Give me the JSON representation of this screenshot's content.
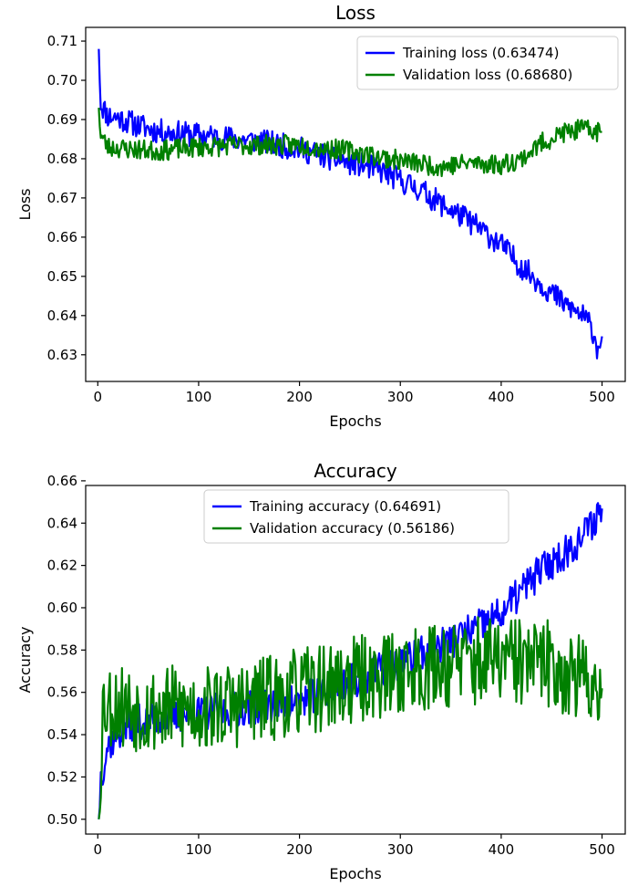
{
  "chart_data": [
    {
      "type": "line",
      "title": "Loss",
      "xlabel": "Epochs",
      "ylabel": "Loss",
      "xlim": [
        -12,
        523
      ],
      "ylim": [
        0.6232,
        0.7135
      ],
      "xticks": [
        0,
        100,
        200,
        300,
        400,
        500
      ],
      "yticks": [
        0.63,
        0.64,
        0.65,
        0.66,
        0.67,
        0.68,
        0.69,
        0.7,
        0.71
      ],
      "ytick_labels": [
        "0.63",
        "0.64",
        "0.65",
        "0.66",
        "0.67",
        "0.68",
        "0.69",
        "0.70",
        "0.71"
      ],
      "legend_position": "upper right",
      "series": [
        {
          "name": "Training loss (0.63474)",
          "color": "#0000ff",
          "noise": 0.0032,
          "seed": 11,
          "x": [
            1,
            3,
            10,
            20,
            40,
            60,
            80,
            100,
            120,
            140,
            160,
            180,
            200,
            220,
            240,
            260,
            280,
            300,
            320,
            340,
            360,
            380,
            400,
            420,
            440,
            460,
            480,
            490,
            495,
            500
          ],
          "y": [
            0.708,
            0.694,
            0.691,
            0.6905,
            0.6885,
            0.687,
            0.6865,
            0.686,
            0.6855,
            0.685,
            0.6845,
            0.6835,
            0.6825,
            0.681,
            0.6795,
            0.6785,
            0.677,
            0.6745,
            0.672,
            0.6685,
            0.6655,
            0.662,
            0.658,
            0.6525,
            0.648,
            0.6435,
            0.64,
            0.637,
            0.632,
            0.6347
          ]
        },
        {
          "name": "Validation loss (0.68680)",
          "color": "#008000",
          "noise": 0.0026,
          "seed": 23,
          "x": [
            1,
            3,
            10,
            30,
            60,
            100,
            150,
            200,
            250,
            300,
            340,
            370,
            400,
            420,
            440,
            460,
            480,
            500
          ],
          "y": [
            0.693,
            0.686,
            0.683,
            0.6825,
            0.682,
            0.683,
            0.6835,
            0.6835,
            0.682,
            0.6795,
            0.678,
            0.679,
            0.6785,
            0.68,
            0.684,
            0.6865,
            0.6875,
            0.6868
          ]
        }
      ]
    },
    {
      "type": "line",
      "title": "Accuracy",
      "xlabel": "Epochs",
      "ylabel": "Accuracy",
      "xlim": [
        -12,
        523
      ],
      "ylim": [
        0.493,
        0.6578
      ],
      "xticks": [
        0,
        100,
        200,
        300,
        400,
        500
      ],
      "yticks": [
        0.5,
        0.52,
        0.54,
        0.56,
        0.58,
        0.6,
        0.62,
        0.64,
        0.66
      ],
      "ytick_labels": [
        "0.50",
        "0.52",
        "0.54",
        "0.56",
        "0.58",
        "0.60",
        "0.62",
        "0.64",
        "0.66"
      ],
      "legend_position": "upper center",
      "series": [
        {
          "name": "Training accuracy (0.64691)",
          "color": "#0000ff",
          "noise": 0.0085,
          "seed": 37,
          "x": [
            1,
            3,
            10,
            30,
            60,
            100,
            150,
            200,
            250,
            300,
            340,
            370,
            400,
            420,
            440,
            460,
            480,
            500
          ],
          "y": [
            0.5,
            0.52,
            0.535,
            0.545,
            0.548,
            0.55,
            0.553,
            0.556,
            0.565,
            0.574,
            0.582,
            0.589,
            0.597,
            0.608,
            0.618,
            0.625,
            0.633,
            0.6469
          ]
        },
        {
          "name": "Validation accuracy (0.56186)",
          "color": "#008000",
          "noise": 0.021,
          "seed": 53,
          "x": [
            1,
            5,
            50,
            100,
            150,
            200,
            250,
            300,
            350,
            400,
            450,
            500
          ],
          "y": [
            0.5,
            0.555,
            0.552,
            0.552,
            0.555,
            0.56,
            0.565,
            0.57,
            0.574,
            0.575,
            0.573,
            0.5619
          ]
        }
      ]
    }
  ]
}
